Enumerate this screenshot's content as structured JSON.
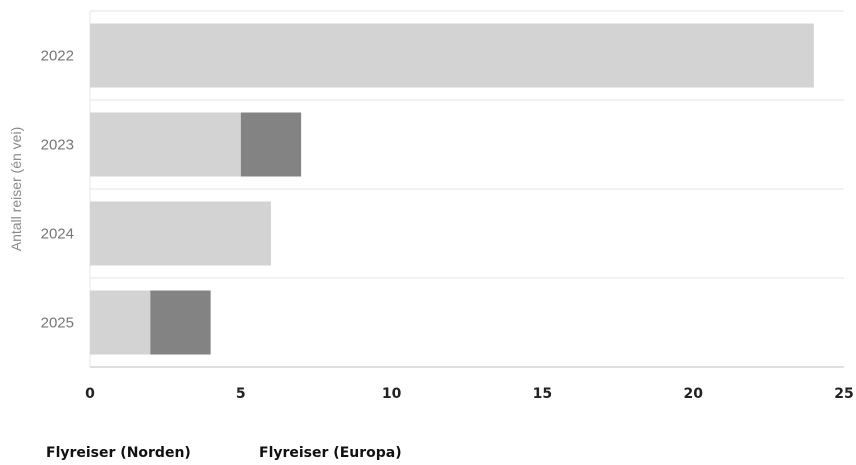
{
  "chart_data": {
    "type": "bar",
    "orientation": "horizontal",
    "stacked": true,
    "categories": [
      "2022",
      "2023",
      "2024",
      "2025"
    ],
    "series": [
      {
        "name": "Flyreiser (Norden)",
        "values": [
          24,
          5,
          6,
          2
        ],
        "color": "#d3d3d3"
      },
      {
        "name": "Flyreiser (Europa)",
        "values": [
          0,
          2,
          0,
          2
        ],
        "color": "#838383"
      }
    ],
    "xlim": [
      0,
      25
    ],
    "x_ticks": [
      0,
      5,
      10,
      15,
      20,
      25
    ],
    "ylabel": "Antall reiser (én vei)",
    "grid": true,
    "legend_position": "bottom-left"
  }
}
